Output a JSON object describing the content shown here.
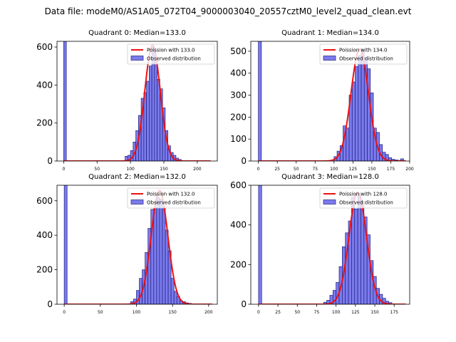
{
  "figure": {
    "suptitle": "Data file: modeM0/AS1A05_072T04_9000003040_20557cztM0_level2_quad_clean.evt"
  },
  "colors": {
    "bar_fill": "#7b7bee",
    "bar_edge": "#1e1e7a",
    "fit_line": "#ee1111",
    "axis": "#000000"
  },
  "chart_data": [
    {
      "type": "bar",
      "title": "Quadrant 0: Median=133.0",
      "xlim": [
        -10,
        230
      ],
      "ylim": [
        0,
        630
      ],
      "xticks": [
        0,
        50,
        100,
        150,
        200
      ],
      "yticks": [
        0,
        200,
        400,
        600
      ],
      "bin_width": 4,
      "bin_starts": [
        0,
        92,
        96,
        100,
        104,
        108,
        112,
        116,
        120,
        124,
        128,
        132,
        136,
        140,
        144,
        148,
        152,
        156,
        160,
        164,
        168,
        172
      ],
      "values": [
        630,
        25,
        30,
        55,
        100,
        160,
        240,
        330,
        360,
        420,
        500,
        600,
        530,
        430,
        380,
        280,
        160,
        80,
        45,
        30,
        15,
        8
      ],
      "fit": {
        "mean": 133.0,
        "peak": 610,
        "x_range": [
          0,
          220
        ]
      },
      "legend": [
        "Poission with 133.0",
        "Observed distribution"
      ]
    },
    {
      "type": "bar",
      "title": "Quadrant 1: Median=134.0",
      "xlim": [
        -10,
        200
      ],
      "ylim": [
        0,
        545
      ],
      "xticks": [
        0,
        25,
        50,
        75,
        100,
        125,
        150,
        175,
        200
      ],
      "yticks": [
        0,
        100,
        200,
        300,
        400,
        500
      ],
      "bin_width": 4,
      "bin_starts": [
        0,
        100,
        104,
        108,
        112,
        116,
        120,
        124,
        128,
        132,
        136,
        140,
        144,
        148,
        152,
        156,
        160,
        164,
        168,
        172,
        176,
        180,
        184,
        188
      ],
      "values": [
        545,
        20,
        45,
        70,
        160,
        150,
        300,
        360,
        430,
        480,
        510,
        470,
        420,
        310,
        150,
        130,
        75,
        40,
        30,
        15,
        8,
        5,
        3,
        10
      ],
      "fit": {
        "mean": 134.0,
        "peak": 510,
        "x_range": [
          0,
          195
        ]
      },
      "legend": [
        "Poission with 134.0",
        "Observed distribution"
      ]
    },
    {
      "type": "bar",
      "title": "Quadrant 2: Median=132.0",
      "xlim": [
        -10,
        212
      ],
      "ylim": [
        0,
        690
      ],
      "xticks": [
        0,
        50,
        100,
        150,
        200
      ],
      "yticks": [
        0,
        200,
        400,
        600
      ],
      "bin_width": 4,
      "bin_starts": [
        0,
        92,
        96,
        100,
        104,
        108,
        112,
        116,
        120,
        124,
        128,
        132,
        136,
        140,
        144,
        148,
        152,
        156,
        160,
        164,
        168,
        172
      ],
      "values": [
        690,
        15,
        30,
        80,
        150,
        200,
        300,
        440,
        550,
        560,
        620,
        610,
        560,
        430,
        310,
        150,
        75,
        45,
        20,
        15,
        8,
        5
      ],
      "fit": {
        "mean": 132.0,
        "peak": 660,
        "x_range": [
          0,
          205
        ]
      },
      "legend": [
        "Poission with 132.0",
        "Observed distribution"
      ]
    },
    {
      "type": "bar",
      "title": "Quadrant 3: Median=128.0",
      "xlim": [
        -10,
        195
      ],
      "ylim": [
        0,
        600
      ],
      "xticks": [
        0,
        25,
        50,
        75,
        100,
        125,
        150,
        175
      ],
      "yticks": [
        0,
        200,
        400,
        600
      ],
      "bin_width": 4,
      "bin_starts": [
        0,
        84,
        88,
        92,
        96,
        100,
        104,
        108,
        112,
        116,
        120,
        124,
        128,
        132,
        136,
        140,
        144,
        148,
        152,
        156,
        160,
        164,
        168
      ],
      "values": [
        600,
        10,
        20,
        45,
        70,
        110,
        190,
        290,
        360,
        420,
        540,
        480,
        560,
        520,
        440,
        350,
        220,
        140,
        80,
        50,
        30,
        15,
        8
      ],
      "fit": {
        "mean": 128.0,
        "peak": 565,
        "x_range": [
          0,
          190
        ]
      },
      "legend": [
        "Poission with 128.0",
        "Observed distribution"
      ]
    }
  ]
}
